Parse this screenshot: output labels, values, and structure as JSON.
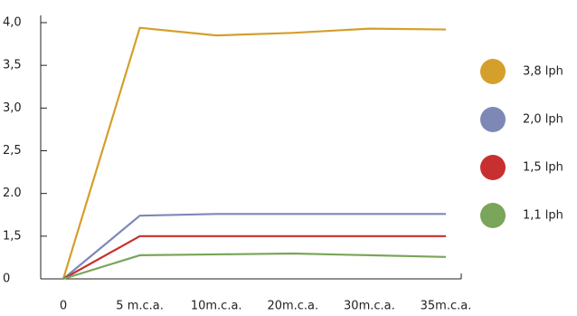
{
  "chart_data": {
    "type": "line",
    "categories": [
      "0",
      "5 m.c.a.",
      "10m.c.a.",
      "20m.c.a.",
      "30m.c.a.",
      "35m.c.a."
    ],
    "series": [
      {
        "name": "3,8 lph",
        "color": "#d49f2b",
        "values": [
          0,
          3.94,
          3.85,
          3.88,
          3.93,
          3.92
        ]
      },
      {
        "name": "2,0 lph",
        "color": "#7d88b6",
        "values": [
          0,
          1.74,
          1.76,
          1.76,
          1.76,
          1.76
        ]
      },
      {
        "name": "1,5 lph",
        "color": "#c8302f",
        "values": [
          0,
          1.5,
          1.5,
          1.5,
          1.5,
          1.5
        ]
      },
      {
        "name": "1,1 lph",
        "color": "#7aa55a",
        "values": [
          0,
          0.83,
          0.86,
          0.89,
          0.83,
          0.77
        ]
      }
    ],
    "ylim": [
      0,
      4
    ],
    "yticks": [
      {
        "value": 0,
        "label": "0"
      },
      {
        "value": 1.5,
        "label": "1,5"
      },
      {
        "value": 2,
        "label": "2.0"
      },
      {
        "value": 2.5,
        "label": "2,5"
      },
      {
        "value": 3,
        "label": "3,0"
      },
      {
        "value": 3.5,
        "label": "3,5"
      },
      {
        "value": 4,
        "label": "4,0"
      }
    ],
    "legend": "right"
  }
}
